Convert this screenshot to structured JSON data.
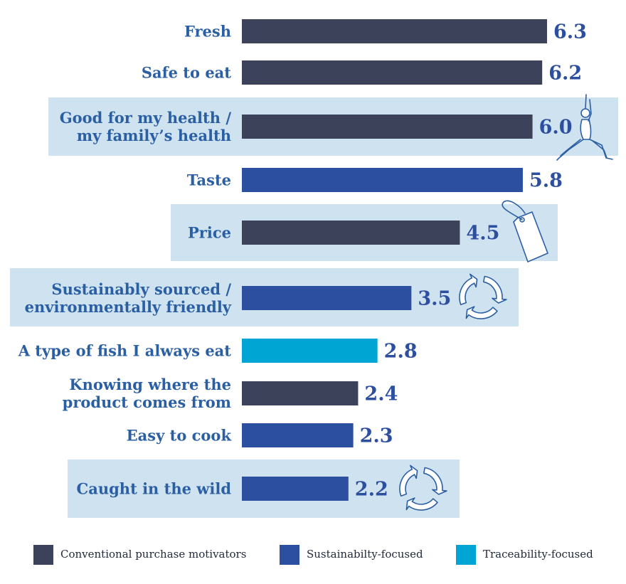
{
  "chart_data": {
    "type": "bar",
    "orientation": "horizontal",
    "categories": [
      [
        "Fresh"
      ],
      [
        "Safe to eat"
      ],
      [
        "Good for my health /",
        "my family’s health"
      ],
      [
        "Taste"
      ],
      [
        "Price"
      ],
      [
        "Sustainably sourced /",
        "environmentally friendly"
      ],
      [
        "A type of fish I always eat"
      ],
      [
        "Knowing where the",
        "product comes from"
      ],
      [
        "Easy to cook"
      ],
      [
        "Caught in the wild"
      ]
    ],
    "values": [
      6.3,
      6.2,
      6.0,
      5.8,
      4.5,
      3.5,
      2.8,
      2.4,
      2.3,
      2.2
    ],
    "value_labels": [
      "6.3",
      "6.2",
      "6.0",
      "5.8",
      "4.5",
      "3.5",
      "2.8",
      "2.4",
      "2.3",
      "2.2"
    ],
    "groups": [
      "conventional",
      "conventional",
      "conventional",
      "sustainability",
      "conventional",
      "sustainability",
      "traceability",
      "conventional",
      "sustainability",
      "sustainability"
    ],
    "highlighted": [
      false,
      false,
      true,
      false,
      true,
      true,
      false,
      false,
      false,
      true
    ],
    "icons": [
      "",
      "",
      "yoga-figure-icon",
      "",
      "price-tag-icon",
      "recycle-icon",
      "",
      "",
      "",
      "recycle-icon"
    ],
    "xlim": [
      0,
      6.3
    ],
    "title": "",
    "xlabel": "",
    "ylabel": "",
    "legend": [
      {
        "key": "conventional",
        "label": "Conventional purchase motivators",
        "color": "#3b4259"
      },
      {
        "key": "sustainability",
        "label": "Sustainabilty-focused",
        "color": "#2d4fa0"
      },
      {
        "key": "traceability",
        "label": "Traceability-focused",
        "color": "#00a5d3"
      }
    ],
    "colors": {
      "conventional": "#3b4259",
      "sustainability": "#2d4fa0",
      "traceability": "#00a5d3",
      "highlight_band": "#cfe2f0",
      "label_text": "#2b5fa3",
      "value_text": "#2d4fa0"
    }
  }
}
